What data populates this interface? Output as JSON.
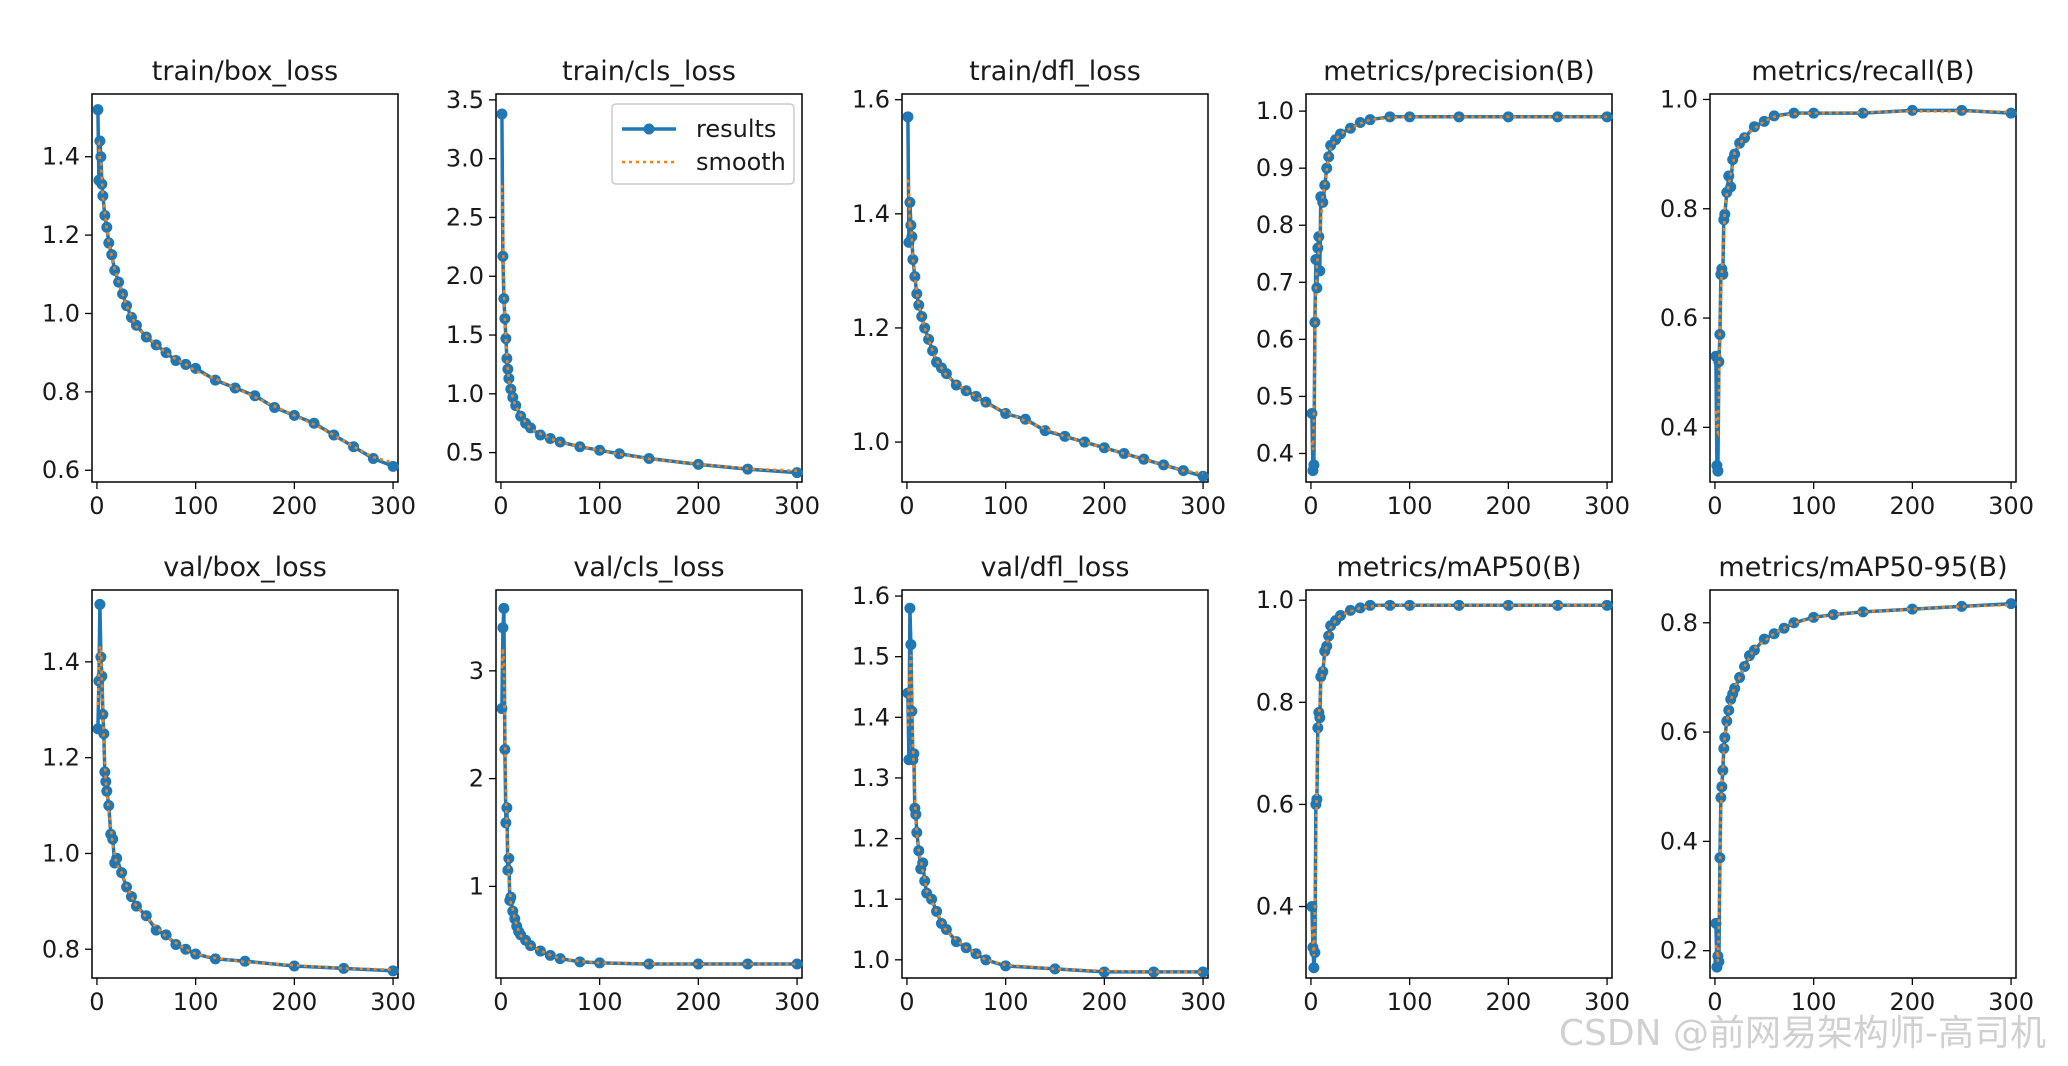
{
  "colors": {
    "results": "#1f77b4",
    "smooth": "#ff7f0e"
  },
  "legend": {
    "results_label": "results",
    "smooth_label": "smooth",
    "placement": "upper-right of train/cls_loss"
  },
  "watermark": "CSDN @前网易架构师-高司机",
  "chart_data": [
    {
      "type": "line",
      "title": "train/box_loss",
      "xlim": [
        -5,
        305
      ],
      "ylim": [
        0.57,
        1.56
      ],
      "xticks": [
        0,
        100,
        200,
        300
      ],
      "yticks": [
        0.6,
        0.8,
        1.0,
        1.2,
        1.4
      ],
      "ytick_labels": [
        "0.6",
        "0.8",
        "1.0",
        "1.2",
        "1.4"
      ],
      "x": [
        1,
        2,
        3,
        4,
        5,
        6,
        8,
        10,
        12,
        15,
        18,
        22,
        26,
        30,
        35,
        40,
        50,
        60,
        70,
        80,
        90,
        100,
        120,
        140,
        160,
        180,
        200,
        220,
        240,
        260,
        280,
        300
      ],
      "y": [
        1.52,
        1.34,
        1.44,
        1.4,
        1.33,
        1.3,
        1.25,
        1.22,
        1.18,
        1.15,
        1.11,
        1.08,
        1.05,
        1.02,
        0.99,
        0.97,
        0.94,
        0.92,
        0.9,
        0.88,
        0.87,
        0.86,
        0.83,
        0.81,
        0.79,
        0.76,
        0.74,
        0.72,
        0.69,
        0.66,
        0.63,
        0.61
      ]
    },
    {
      "type": "line",
      "title": "train/cls_loss",
      "legend": true,
      "xlim": [
        -5,
        305
      ],
      "ylim": [
        0.25,
        3.55
      ],
      "xticks": [
        0,
        100,
        200,
        300
      ],
      "yticks": [
        0.5,
        1.0,
        1.5,
        2.0,
        2.5,
        3.0,
        3.5
      ],
      "ytick_labels": [
        "0.5",
        "1.0",
        "1.5",
        "2.0",
        "2.5",
        "3.0",
        "3.5"
      ],
      "x": [
        1,
        2,
        3,
        4,
        5,
        6,
        7,
        8,
        10,
        12,
        15,
        20,
        25,
        30,
        40,
        50,
        60,
        80,
        100,
        120,
        150,
        200,
        250,
        300
      ],
      "y": [
        3.38,
        2.17,
        1.81,
        1.64,
        1.47,
        1.3,
        1.21,
        1.13,
        1.04,
        0.97,
        0.9,
        0.81,
        0.75,
        0.71,
        0.65,
        0.62,
        0.59,
        0.55,
        0.52,
        0.49,
        0.45,
        0.4,
        0.36,
        0.33
      ]
    },
    {
      "type": "line",
      "title": "train/dfl_loss",
      "xlim": [
        -5,
        305
      ],
      "ylim": [
        0.93,
        1.61
      ],
      "xticks": [
        0,
        100,
        200,
        300
      ],
      "yticks": [
        1.0,
        1.2,
        1.4,
        1.6
      ],
      "ytick_labels": [
        "1.0",
        "1.2",
        "1.4",
        "1.6"
      ],
      "x": [
        1,
        2,
        3,
        4,
        5,
        6,
        8,
        10,
        12,
        15,
        18,
        22,
        26,
        30,
        35,
        40,
        50,
        60,
        70,
        80,
        100,
        120,
        140,
        160,
        180,
        200,
        220,
        240,
        260,
        280,
        300
      ],
      "y": [
        1.57,
        1.35,
        1.42,
        1.38,
        1.36,
        1.32,
        1.29,
        1.26,
        1.24,
        1.22,
        1.2,
        1.18,
        1.16,
        1.14,
        1.13,
        1.12,
        1.1,
        1.09,
        1.08,
        1.07,
        1.05,
        1.04,
        1.02,
        1.01,
        1.0,
        0.99,
        0.98,
        0.97,
        0.96,
        0.95,
        0.94
      ]
    },
    {
      "type": "line",
      "title": "metrics/precision(B)",
      "xlim": [
        -5,
        305
      ],
      "ylim": [
        0.35,
        1.03
      ],
      "xticks": [
        0,
        100,
        200,
        300
      ],
      "yticks": [
        0.4,
        0.5,
        0.6,
        0.7,
        0.8,
        0.9,
        1.0
      ],
      "ytick_labels": [
        "0.4",
        "0.5",
        "0.6",
        "0.7",
        "0.8",
        "0.9",
        "1.0"
      ],
      "x": [
        1,
        2,
        3,
        4,
        5,
        6,
        7,
        8,
        9,
        10,
        12,
        14,
        16,
        18,
        20,
        25,
        30,
        40,
        50,
        60,
        80,
        100,
        150,
        200,
        250,
        300
      ],
      "y": [
        0.47,
        0.37,
        0.38,
        0.63,
        0.74,
        0.69,
        0.76,
        0.78,
        0.72,
        0.85,
        0.84,
        0.87,
        0.9,
        0.92,
        0.94,
        0.95,
        0.96,
        0.97,
        0.98,
        0.985,
        0.99,
        0.99,
        0.99,
        0.99,
        0.99,
        0.99
      ]
    },
    {
      "type": "line",
      "title": "metrics/recall(B)",
      "xlim": [
        -5,
        305
      ],
      "ylim": [
        0.3,
        1.01
      ],
      "xticks": [
        0,
        100,
        200,
        300
      ],
      "yticks": [
        0.4,
        0.6,
        0.8,
        1.0
      ],
      "ytick_labels": [
        "0.4",
        "0.6",
        "0.8",
        "1.0"
      ],
      "x": [
        1,
        2,
        3,
        4,
        5,
        6,
        7,
        8,
        9,
        10,
        12,
        14,
        16,
        18,
        20,
        25,
        30,
        40,
        50,
        60,
        80,
        100,
        150,
        200,
        250,
        300
      ],
      "y": [
        0.53,
        0.33,
        0.32,
        0.52,
        0.57,
        0.68,
        0.69,
        0.68,
        0.78,
        0.79,
        0.83,
        0.86,
        0.84,
        0.89,
        0.9,
        0.92,
        0.93,
        0.95,
        0.96,
        0.97,
        0.975,
        0.975,
        0.975,
        0.98,
        0.98,
        0.975
      ]
    },
    {
      "type": "line",
      "title": "val/box_loss",
      "xlim": [
        -5,
        305
      ],
      "ylim": [
        0.74,
        1.55
      ],
      "xticks": [
        0,
        100,
        200,
        300
      ],
      "yticks": [
        0.8,
        1.0,
        1.2,
        1.4
      ],
      "ytick_labels": [
        "0.8",
        "1.0",
        "1.2",
        "1.4"
      ],
      "x": [
        1,
        2,
        3,
        4,
        5,
        6,
        7,
        8,
        9,
        10,
        12,
        14,
        16,
        18,
        20,
        25,
        30,
        35,
        40,
        50,
        60,
        70,
        80,
        90,
        100,
        120,
        150,
        200,
        250,
        300
      ],
      "y": [
        1.26,
        1.36,
        1.52,
        1.41,
        1.37,
        1.29,
        1.25,
        1.17,
        1.15,
        1.13,
        1.1,
        1.04,
        1.03,
        0.98,
        0.99,
        0.96,
        0.93,
        0.91,
        0.89,
        0.87,
        0.84,
        0.83,
        0.81,
        0.8,
        0.79,
        0.78,
        0.775,
        0.765,
        0.76,
        0.755
      ]
    },
    {
      "type": "line",
      "title": "val/cls_loss",
      "xlim": [
        -5,
        305
      ],
      "ylim": [
        0.15,
        3.75
      ],
      "xticks": [
        0,
        100,
        200,
        300
      ],
      "yticks": [
        1,
        2,
        3
      ],
      "ytick_labels": [
        "1",
        "2",
        "3"
      ],
      "x": [
        1,
        2,
        3,
        4,
        5,
        6,
        7,
        8,
        9,
        10,
        12,
        14,
        16,
        18,
        20,
        25,
        30,
        40,
        50,
        60,
        80,
        100,
        150,
        200,
        250,
        300
      ],
      "y": [
        2.65,
        3.4,
        3.58,
        2.27,
        1.59,
        1.73,
        1.15,
        1.26,
        0.87,
        0.9,
        0.77,
        0.7,
        0.63,
        0.58,
        0.55,
        0.5,
        0.45,
        0.4,
        0.36,
        0.33,
        0.3,
        0.29,
        0.28,
        0.28,
        0.28,
        0.28
      ]
    },
    {
      "type": "line",
      "title": "val/dfl_loss",
      "xlim": [
        -5,
        305
      ],
      "ylim": [
        0.97,
        1.61
      ],
      "xticks": [
        0,
        100,
        200,
        300
      ],
      "yticks": [
        1.0,
        1.1,
        1.2,
        1.3,
        1.4,
        1.5,
        1.6
      ],
      "ytick_labels": [
        "1.0",
        "1.1",
        "1.2",
        "1.3",
        "1.4",
        "1.5",
        "1.6"
      ],
      "x": [
        1,
        2,
        3,
        4,
        5,
        6,
        7,
        8,
        9,
        10,
        12,
        14,
        16,
        18,
        20,
        25,
        30,
        35,
        40,
        50,
        60,
        70,
        80,
        100,
        150,
        200,
        250,
        300
      ],
      "y": [
        1.44,
        1.33,
        1.58,
        1.52,
        1.41,
        1.33,
        1.34,
        1.25,
        1.24,
        1.21,
        1.18,
        1.15,
        1.16,
        1.13,
        1.11,
        1.1,
        1.08,
        1.06,
        1.05,
        1.03,
        1.02,
        1.01,
        1.0,
        0.99,
        0.985,
        0.98,
        0.98,
        0.98
      ]
    },
    {
      "type": "line",
      "title": "metrics/mAP50(B)",
      "xlim": [
        -5,
        305
      ],
      "ylim": [
        0.26,
        1.02
      ],
      "xticks": [
        0,
        100,
        200,
        300
      ],
      "yticks": [
        0.4,
        0.6,
        0.8,
        1.0
      ],
      "ytick_labels": [
        "0.4",
        "0.6",
        "0.8",
        "1.0"
      ],
      "x": [
        1,
        2,
        3,
        4,
        5,
        6,
        7,
        8,
        9,
        10,
        12,
        14,
        16,
        18,
        20,
        25,
        30,
        40,
        50,
        60,
        80,
        100,
        150,
        200,
        250,
        300
      ],
      "y": [
        0.4,
        0.32,
        0.28,
        0.31,
        0.6,
        0.61,
        0.75,
        0.78,
        0.77,
        0.85,
        0.86,
        0.9,
        0.91,
        0.93,
        0.95,
        0.96,
        0.97,
        0.98,
        0.985,
        0.99,
        0.99,
        0.99,
        0.99,
        0.99,
        0.99,
        0.99
      ]
    },
    {
      "type": "line",
      "title": "metrics/mAP50-95(B)",
      "xlim": [
        -5,
        305
      ],
      "ylim": [
        0.15,
        0.86
      ],
      "xticks": [
        0,
        100,
        200,
        300
      ],
      "yticks": [
        0.2,
        0.4,
        0.6,
        0.8
      ],
      "ytick_labels": [
        "0.2",
        "0.4",
        "0.6",
        "0.8"
      ],
      "x": [
        1,
        2,
        3,
        4,
        5,
        6,
        7,
        8,
        9,
        10,
        12,
        14,
        16,
        18,
        20,
        25,
        30,
        35,
        40,
        50,
        60,
        70,
        80,
        100,
        120,
        150,
        200,
        250,
        300
      ],
      "y": [
        0.25,
        0.17,
        0.19,
        0.18,
        0.37,
        0.48,
        0.5,
        0.53,
        0.57,
        0.59,
        0.62,
        0.64,
        0.66,
        0.67,
        0.68,
        0.7,
        0.72,
        0.74,
        0.75,
        0.77,
        0.78,
        0.79,
        0.8,
        0.81,
        0.815,
        0.82,
        0.825,
        0.83,
        0.835
      ]
    }
  ]
}
